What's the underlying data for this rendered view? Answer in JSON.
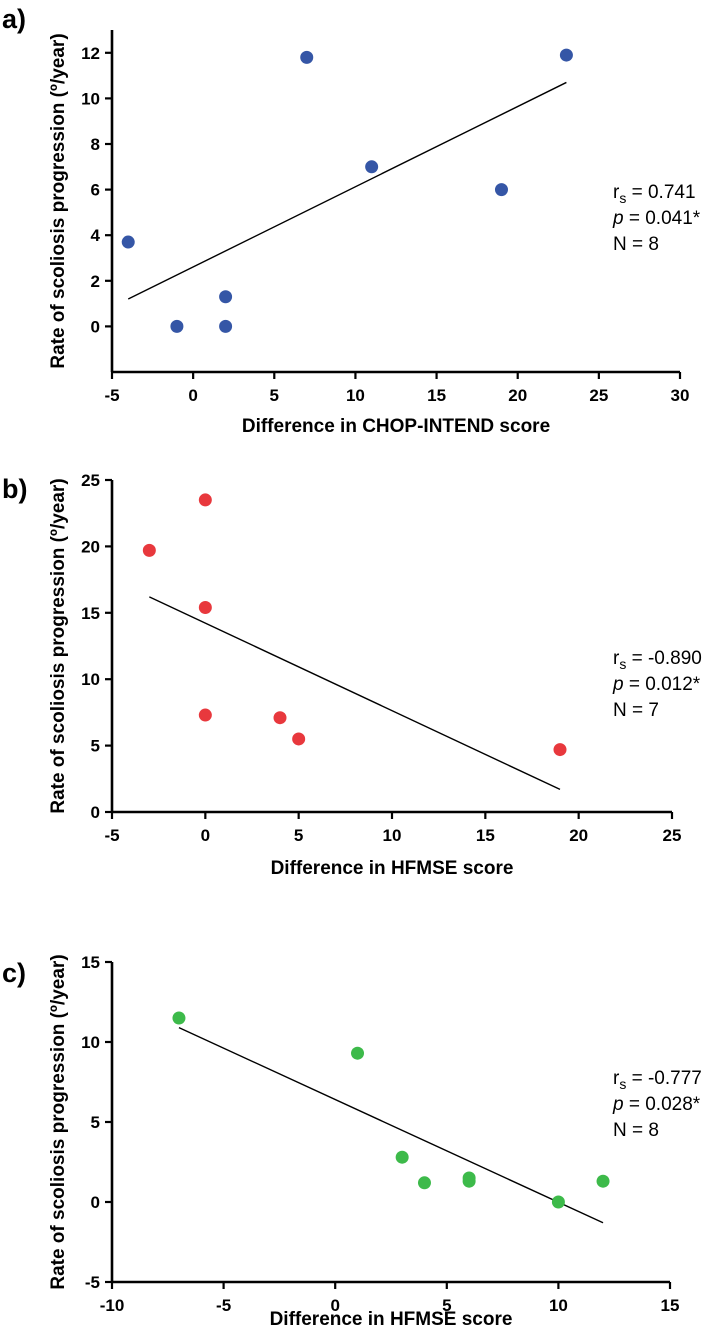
{
  "chart_data": [
    {
      "type": "scatter",
      "panel_label": "a)",
      "color": "#3556A6",
      "xlabel": "Difference in CHOP-INTEND score",
      "ylabel": "Rate of scoliosis progression (º/year)",
      "xlim": [
        -5,
        30
      ],
      "ylim": [
        -2,
        13
      ],
      "xticks": [
        -5,
        0,
        5,
        10,
        15,
        20,
        25,
        30
      ],
      "xtick_labels": [
        "-5",
        "0",
        "5",
        "10",
        "15",
        "20",
        "25",
        "30"
      ],
      "yticks": [
        0,
        2,
        4,
        6,
        8,
        10,
        12
      ],
      "ytick_labels": [
        "0",
        "2",
        "4",
        "6",
        "8",
        "10",
        "12"
      ],
      "points": [
        {
          "x": -4,
          "y": 3.7
        },
        {
          "x": -1,
          "y": 0
        },
        {
          "x": 2,
          "y": 1.3
        },
        {
          "x": 2,
          "y": 0
        },
        {
          "x": 7,
          "y": 11.8
        },
        {
          "x": 11,
          "y": 7
        },
        {
          "x": 19,
          "y": 6
        },
        {
          "x": 23,
          "y": 11.9
        }
      ],
      "fit_line": {
        "x": [
          -4,
          23
        ],
        "y": [
          1.2,
          10.7
        ]
      },
      "stats": {
        "rs_prefix": "r",
        "rs_sub": "s",
        "rs_value": " = 0.741",
        "p_label": "p",
        "p_value": " = 0.041*",
        "n": "N = 8"
      }
    },
    {
      "type": "scatter",
      "panel_label": "b)",
      "color": "#E8383D",
      "xlabel": "Difference in HFMSE score",
      "ylabel": "Rate of scoliosis progression (º/year)",
      "xlim": [
        -5,
        25
      ],
      "ylim": [
        0,
        25
      ],
      "xticks": [
        -5,
        0,
        5,
        10,
        15,
        20,
        25
      ],
      "xtick_labels": [
        "-5",
        "0",
        "5",
        "10",
        "15",
        "20",
        "25"
      ],
      "yticks": [
        0,
        5,
        10,
        15,
        20,
        25
      ],
      "ytick_labels": [
        "0",
        "5",
        "10",
        "15",
        "20",
        "25"
      ],
      "points": [
        {
          "x": -3,
          "y": 19.7
        },
        {
          "x": 0,
          "y": 23.5
        },
        {
          "x": 0,
          "y": 15.4
        },
        {
          "x": 0,
          "y": 7.3
        },
        {
          "x": 4,
          "y": 7.1
        },
        {
          "x": 5,
          "y": 5.5
        },
        {
          "x": 19,
          "y": 4.7
        }
      ],
      "fit_line": {
        "x": [
          -3,
          19
        ],
        "y": [
          16.2,
          1.7
        ]
      },
      "stats": {
        "rs_prefix": "r",
        "rs_sub": "s",
        "rs_value": " = -0.890",
        "p_label": "p",
        "p_value": " = 0.012*",
        "n": "N = 7"
      }
    },
    {
      "type": "scatter",
      "panel_label": "c)",
      "color": "#3DBA4A",
      "xlabel": "Difference in HFMSE score",
      "ylabel": "Rate of scoliosis progression (º/year)",
      "xlim": [
        -10,
        15
      ],
      "ylim": [
        -5,
        15
      ],
      "xticks": [
        -10,
        -5,
        0,
        5,
        10,
        15
      ],
      "xtick_labels": [
        "-10",
        "-5",
        "0",
        "5",
        "10",
        "15"
      ],
      "yticks": [
        -5,
        0,
        5,
        10,
        15
      ],
      "ytick_labels": [
        "-5",
        "0",
        "5",
        "10",
        "15"
      ],
      "points": [
        {
          "x": -7,
          "y": 11.5
        },
        {
          "x": 1,
          "y": 9.3
        },
        {
          "x": 3,
          "y": 2.8
        },
        {
          "x": 4,
          "y": 1.2
        },
        {
          "x": 6,
          "y": 1.5
        },
        {
          "x": 6,
          "y": 1.3
        },
        {
          "x": 10,
          "y": 0
        },
        {
          "x": 12,
          "y": 1.3
        }
      ],
      "fit_line": {
        "x": [
          -7,
          12
        ],
        "y": [
          10.9,
          -1.3
        ]
      },
      "stats": {
        "rs_prefix": "r",
        "rs_sub": "s",
        "rs_value": " = -0.777",
        "p_label": "p",
        "p_value": " = 0.028*",
        "n": "N = 8"
      }
    }
  ]
}
